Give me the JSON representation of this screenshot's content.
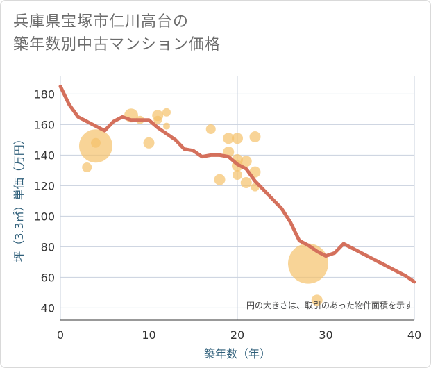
{
  "title_line1": "兵庫県宝塚市仁川高台の",
  "title_line2": "築年数別中古マンション価格",
  "note": "円の大きさは、取引のあった物件面積を示す",
  "colors": {
    "line": "#d4705c",
    "bubble": "#f5c26b",
    "grid": "#c8d1de",
    "axis_text": "#2f5f7a"
  },
  "chart_data": {
    "type": "scatter",
    "xlabel": "築年数（年）",
    "ylabel": "坪（3.3㎡）単価（万円）",
    "xlim": [
      0,
      40
    ],
    "ylim": [
      32,
      192
    ],
    "xticks": [
      0,
      10,
      20,
      30,
      40
    ],
    "yticks": [
      40,
      60,
      80,
      100,
      120,
      140,
      160,
      180
    ],
    "bubbles": [
      {
        "x": 3,
        "y": 132,
        "r": 7
      },
      {
        "x": 4,
        "y": 146,
        "r": 24
      },
      {
        "x": 4,
        "y": 148,
        "r": 7
      },
      {
        "x": 8,
        "y": 166,
        "r": 10
      },
      {
        "x": 9,
        "y": 163,
        "r": 6
      },
      {
        "x": 10,
        "y": 148,
        "r": 8
      },
      {
        "x": 11,
        "y": 166,
        "r": 8
      },
      {
        "x": 11,
        "y": 163,
        "r": 6
      },
      {
        "x": 12,
        "y": 168,
        "r": 6
      },
      {
        "x": 12,
        "y": 159,
        "r": 5
      },
      {
        "x": 17,
        "y": 157,
        "r": 7
      },
      {
        "x": 18,
        "y": 124,
        "r": 8
      },
      {
        "x": 19,
        "y": 151,
        "r": 8
      },
      {
        "x": 19,
        "y": 142,
        "r": 8
      },
      {
        "x": 20,
        "y": 151,
        "r": 8
      },
      {
        "x": 20,
        "y": 137,
        "r": 8
      },
      {
        "x": 20,
        "y": 133,
        "r": 8
      },
      {
        "x": 20,
        "y": 127,
        "r": 7
      },
      {
        "x": 21,
        "y": 136,
        "r": 8
      },
      {
        "x": 21,
        "y": 122,
        "r": 8
      },
      {
        "x": 22,
        "y": 152,
        "r": 8
      },
      {
        "x": 22,
        "y": 129,
        "r": 8
      },
      {
        "x": 22,
        "y": 119,
        "r": 6
      },
      {
        "x": 28,
        "y": 69,
        "r": 29
      },
      {
        "x": 29,
        "y": 45,
        "r": 8
      }
    ],
    "trend": {
      "x": [
        0,
        1,
        2,
        3,
        4,
        5,
        6,
        7,
        8,
        9,
        10,
        11,
        12,
        13,
        14,
        15,
        16,
        17,
        18,
        19,
        20,
        21,
        22,
        23,
        24,
        25,
        26,
        27,
        28,
        29,
        30,
        31,
        32,
        33,
        34,
        35,
        36,
        37,
        38,
        39,
        40
      ],
      "y": [
        185,
        173,
        165,
        162,
        159,
        156,
        162,
        165,
        163,
        163,
        163,
        158,
        154,
        150,
        144,
        143,
        139,
        140,
        140,
        139,
        134,
        131,
        123,
        117,
        111,
        105,
        96,
        84,
        81,
        77,
        74,
        76,
        82,
        79,
        76,
        73,
        70,
        67,
        64,
        61,
        57
      ]
    }
  }
}
